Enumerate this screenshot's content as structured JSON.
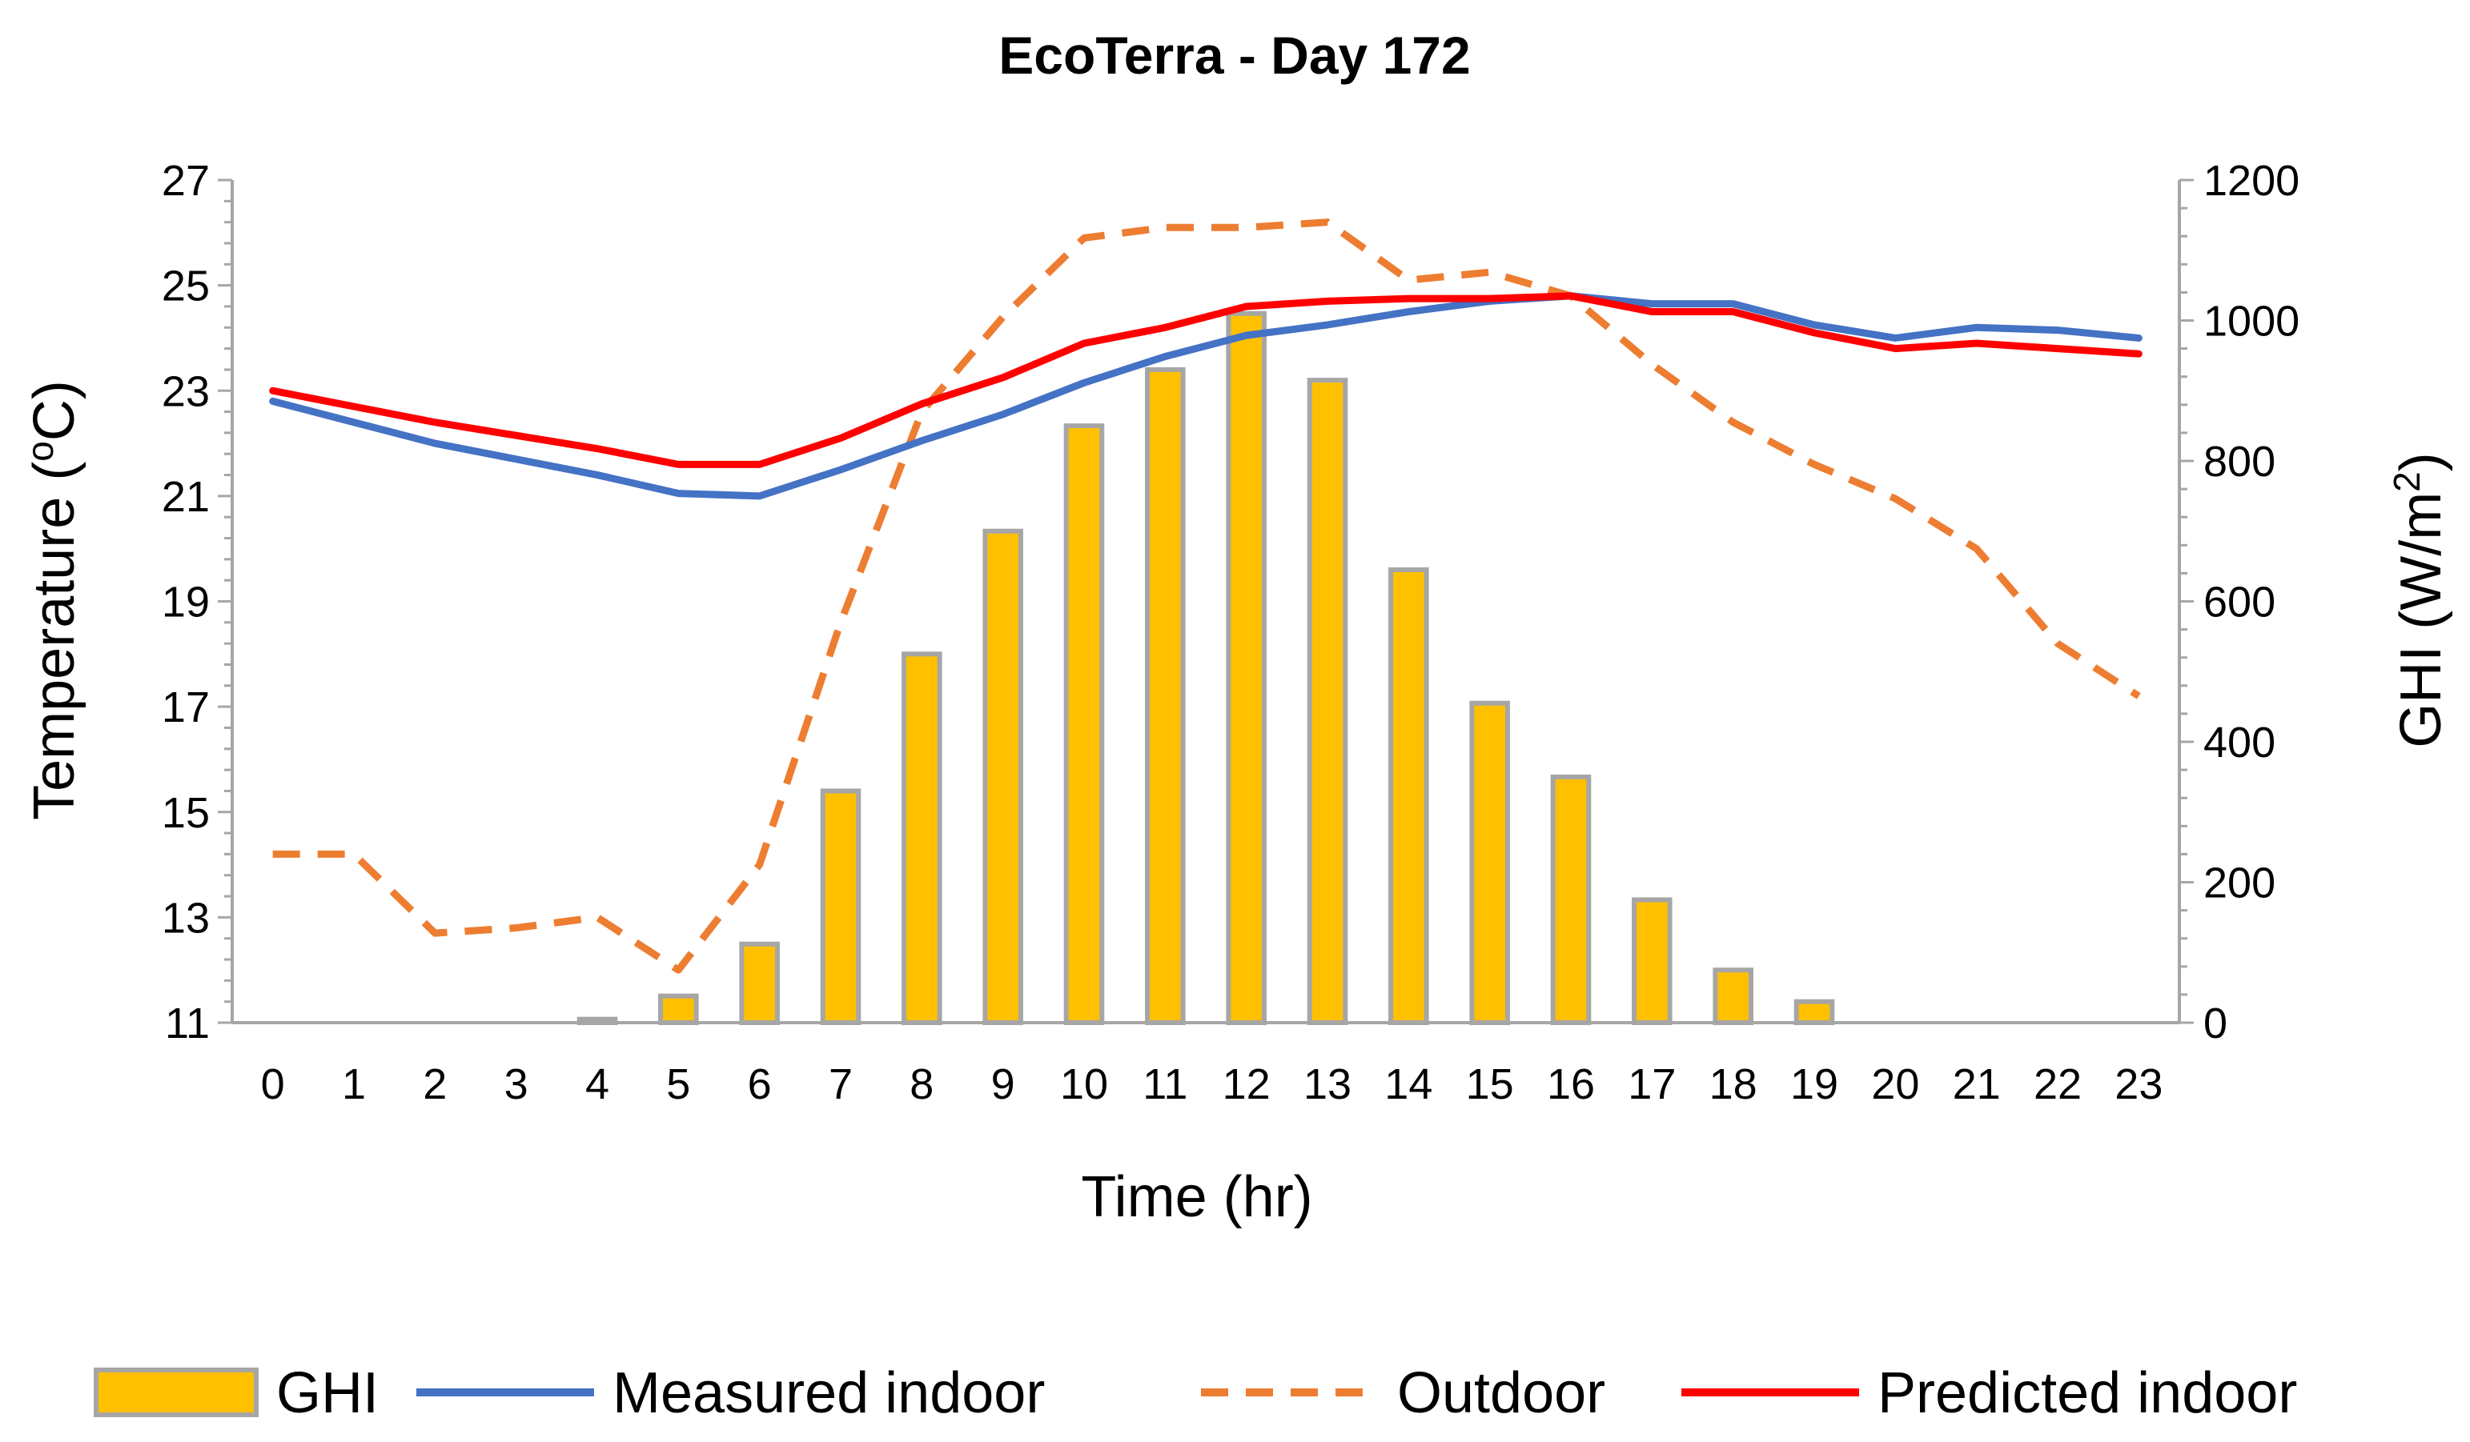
{
  "chart_data": {
    "type": "bar+line",
    "title": "EcoTerra - Day 172",
    "xlabel": "Time (hr)",
    "ylabel_left": "Temperature (°C)",
    "ylabel_right": "GHI (W/m²)",
    "ylabel_left_parts": {
      "before": "Temperature (",
      "sup": "o",
      "after": "C)"
    },
    "ylabel_right_parts": {
      "before": "GHI (W/m",
      "sup": "2",
      "after": ")"
    },
    "ylim_left": [
      11,
      27
    ],
    "yticks_left": [
      11,
      13,
      15,
      17,
      19,
      21,
      23,
      25,
      27
    ],
    "ylim_right": [
      0,
      1200
    ],
    "yticks_right": [
      0,
      200,
      400,
      600,
      800,
      1000,
      1200
    ],
    "categories": [
      "0",
      "1",
      "2",
      "3",
      "4",
      "5",
      "6",
      "7",
      "8",
      "9",
      "10",
      "11",
      "12",
      "13",
      "14",
      "15",
      "16",
      "17",
      "18",
      "19",
      "20",
      "21",
      "22",
      "23"
    ],
    "legend_position": "bottom",
    "series": [
      {
        "name": "GHI",
        "type": "bar",
        "axis": "right",
        "color": "#FFC000",
        "stroke": "#A6A6A6",
        "values": [
          0,
          0,
          0,
          0,
          5,
          38,
          112,
          330,
          525,
          700,
          850,
          930,
          1010,
          915,
          645,
          455,
          350,
          175,
          75,
          30,
          0,
          0,
          0,
          0
        ]
      },
      {
        "name": "Measured indoor",
        "type": "line",
        "axis": "left",
        "color": "#4472C4",
        "dashed": false,
        "values": [
          22.8,
          22.4,
          22.0,
          21.7,
          21.4,
          21.05,
          21.0,
          21.5,
          22.05,
          22.55,
          23.15,
          23.65,
          24.05,
          24.25,
          24.5,
          24.7,
          24.8,
          24.65,
          24.65,
          24.25,
          24.0,
          24.2,
          24.15,
          24.0
        ]
      },
      {
        "name": "Outdoor",
        "type": "line",
        "axis": "left",
        "color": "#ED7D31",
        "dashed": true,
        "values": [
          14.2,
          14.2,
          12.7,
          12.8,
          13.0,
          12.0,
          14.0,
          18.6,
          22.6,
          24.4,
          25.9,
          26.1,
          26.1,
          26.2,
          25.1,
          25.25,
          24.8,
          23.5,
          22.4,
          21.6,
          20.95,
          20.0,
          18.2,
          17.2
        ]
      },
      {
        "name": "Predicted indoor",
        "type": "line",
        "axis": "left",
        "color": "#FF0000",
        "dashed": false,
        "values": [
          23.0,
          22.7,
          22.4,
          22.15,
          21.9,
          21.6,
          21.6,
          22.1,
          22.75,
          23.25,
          23.9,
          24.2,
          24.6,
          24.7,
          24.75,
          24.75,
          24.8,
          24.5,
          24.5,
          24.1,
          23.8,
          23.9,
          23.8,
          23.7
        ]
      }
    ]
  }
}
